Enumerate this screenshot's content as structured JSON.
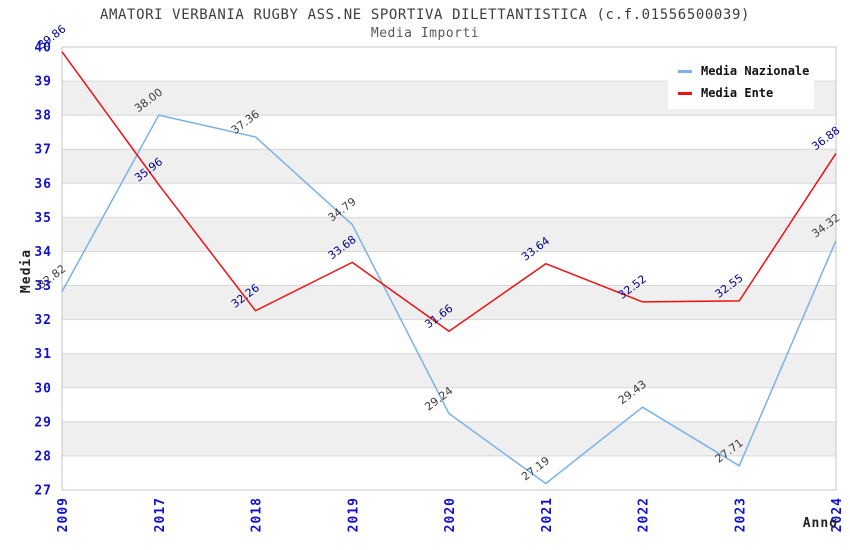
{
  "title": "AMATORI VERBANIA RUGBY ASS.NE SPORTIVA DILETTANTISTICA (c.f.01556500039)",
  "subtitle": "Media Importi",
  "chart_data": {
    "type": "line",
    "x": [
      "2009",
      "2017",
      "2018",
      "2019",
      "2020",
      "2021",
      "2022",
      "2023",
      "2024"
    ],
    "xlabel": "Anno",
    "ylabel": "Media",
    "ylim": [
      27,
      40
    ],
    "ytick_step": 1,
    "grid": true,
    "legend_position": "top-right",
    "series": [
      {
        "name": "Media Nazionale",
        "color": "#7ab2e8",
        "label_color": "#3b3b3b",
        "values": [
          32.82,
          38.0,
          37.36,
          34.79,
          29.24,
          27.19,
          29.43,
          27.71,
          34.32
        ]
      },
      {
        "name": "Media Ente",
        "color": "#ee1111",
        "label_color": "#00008b",
        "values": [
          39.86,
          35.96,
          32.26,
          33.68,
          31.66,
          33.64,
          32.52,
          32.55,
          36.88
        ]
      }
    ],
    "colors": {
      "tick_label": "#1111cc",
      "band": "#efefef",
      "grid": "#d8d8d8",
      "border": "#c4c4c4",
      "background": "#ffffff"
    }
  }
}
